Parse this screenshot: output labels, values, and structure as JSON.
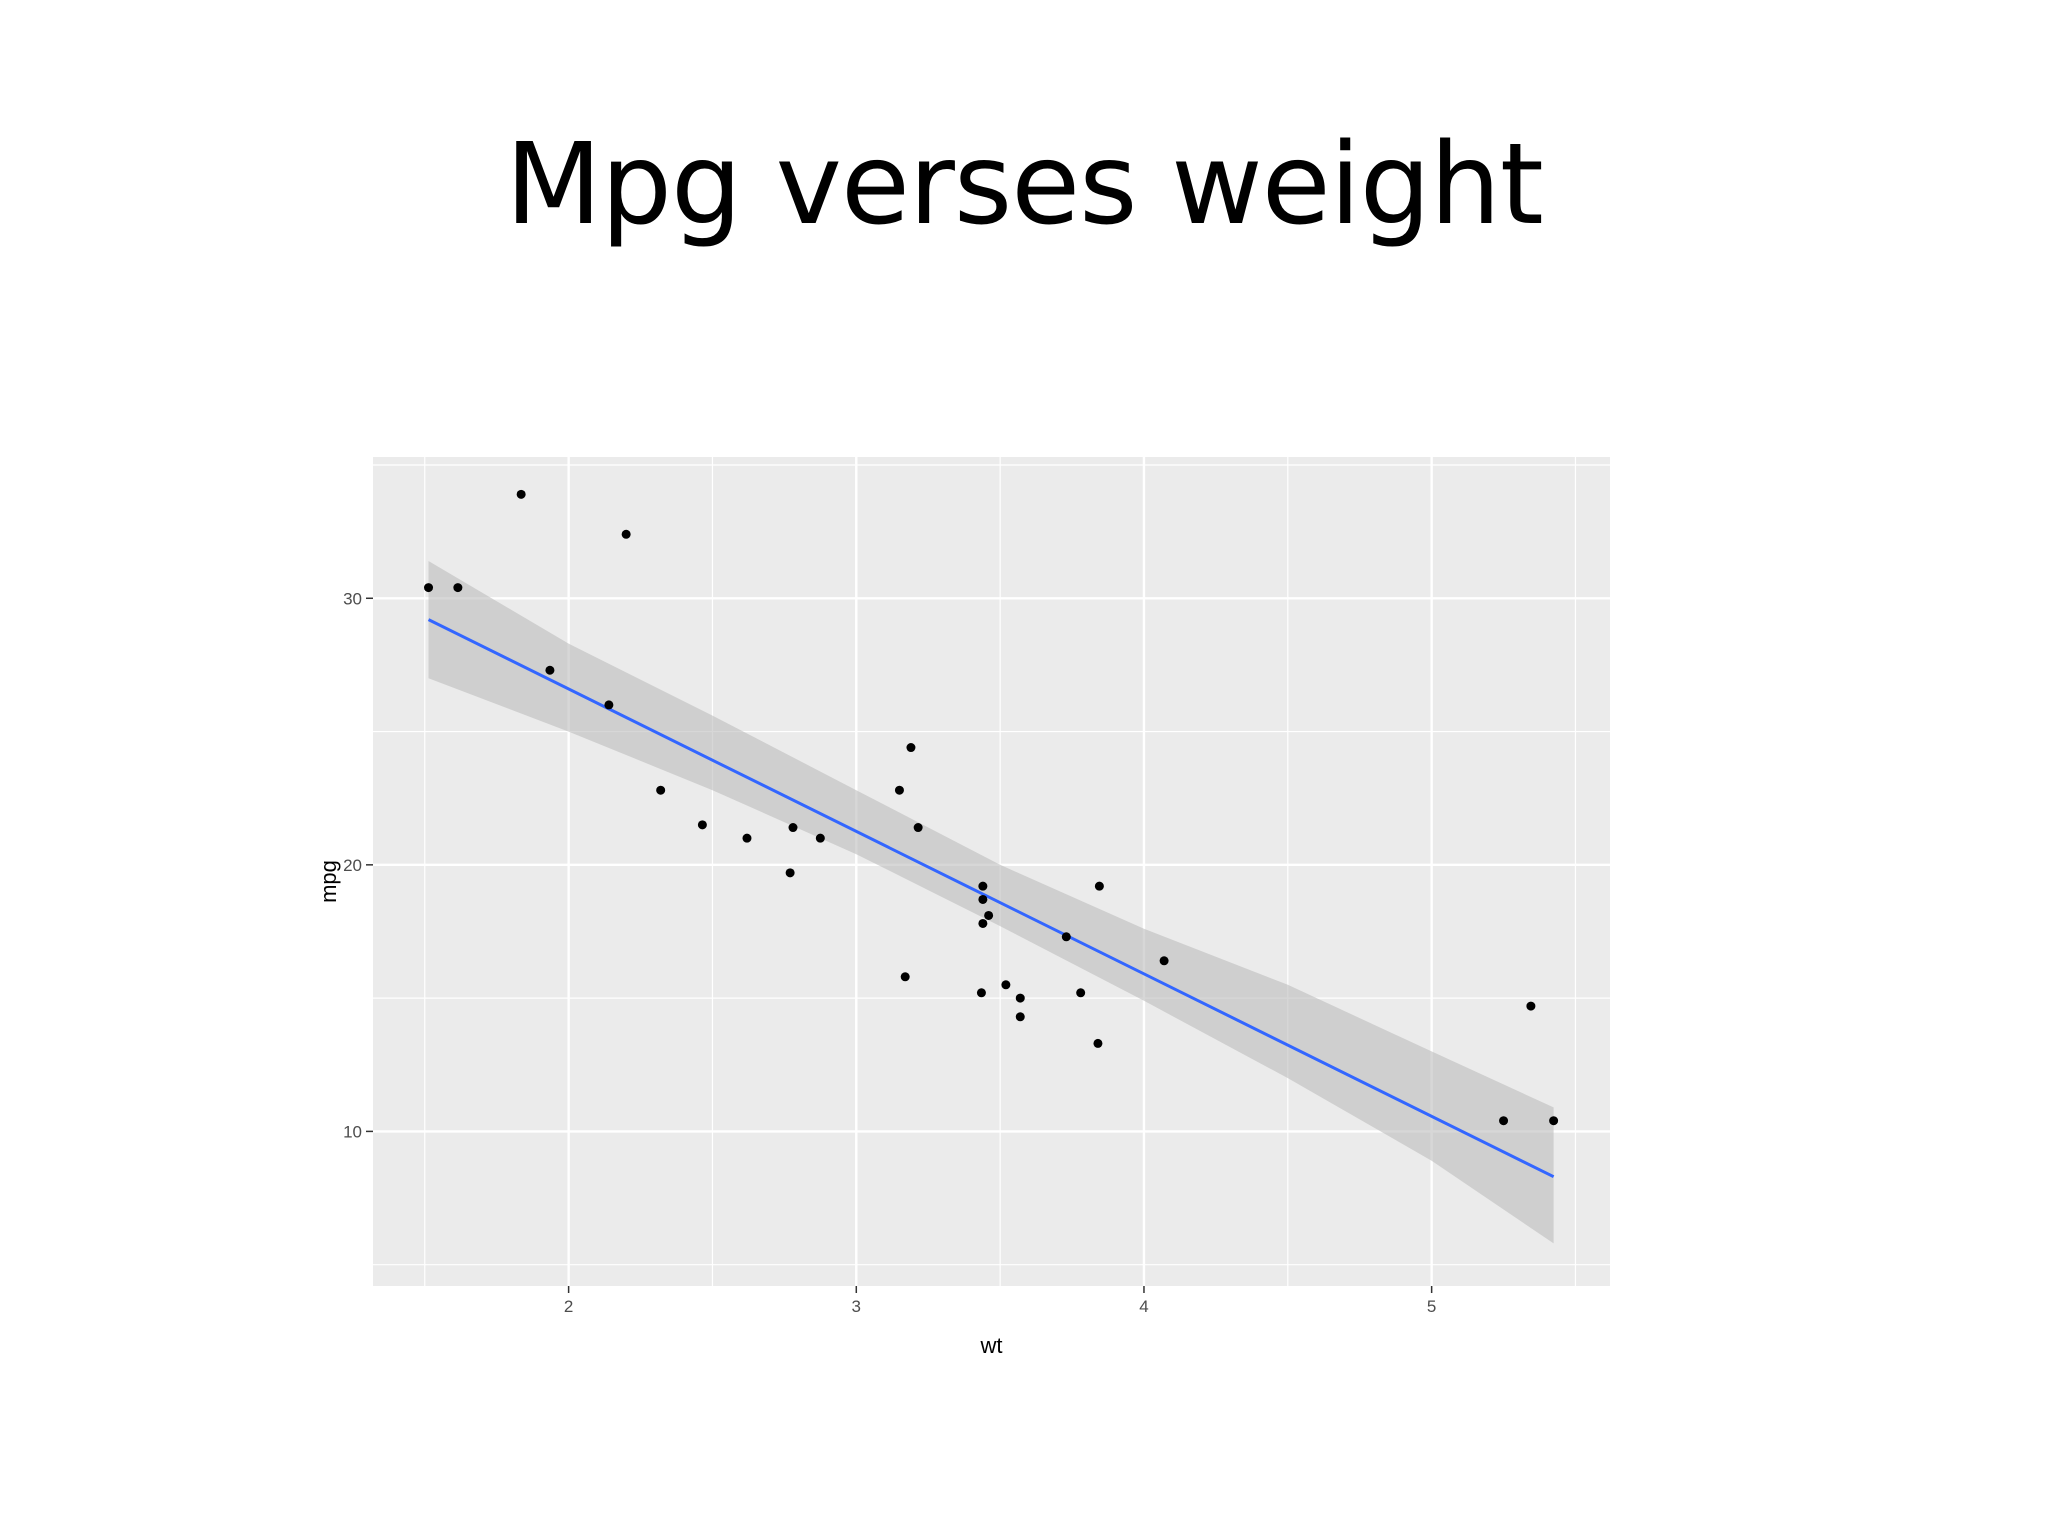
{
  "slide": {
    "title": "Mpg verses weight"
  },
  "colors": {
    "panel": "#ebebeb",
    "grid": "#ffffff",
    "points": "#000000",
    "fit_line": "#3366ff",
    "ribbon": "#bdbdbd"
  },
  "chart_data": {
    "type": "scatter",
    "title": "Mpg verses weight",
    "xlabel": "wt",
    "ylabel": "mpg",
    "xlim": [
      1.32,
      5.62
    ],
    "ylim": [
      4.2,
      35.3
    ],
    "x_ticks": [
      2,
      3,
      4,
      5
    ],
    "y_ticks": [
      10,
      20,
      30
    ],
    "x_tick_labels": [
      "2",
      "3",
      "4",
      "5"
    ],
    "y_tick_labels": [
      "10",
      "20",
      "30"
    ],
    "grid": true,
    "points": [
      {
        "x": 2.62,
        "y": 21.0
      },
      {
        "x": 2.875,
        "y": 21.0
      },
      {
        "x": 2.32,
        "y": 22.8
      },
      {
        "x": 3.215,
        "y": 21.4
      },
      {
        "x": 3.44,
        "y": 18.7
      },
      {
        "x": 3.46,
        "y": 18.1
      },
      {
        "x": 3.57,
        "y": 14.3
      },
      {
        "x": 3.19,
        "y": 24.4
      },
      {
        "x": 3.15,
        "y": 22.8
      },
      {
        "x": 3.44,
        "y": 19.2
      },
      {
        "x": 3.44,
        "y": 17.8
      },
      {
        "x": 4.07,
        "y": 16.4
      },
      {
        "x": 3.73,
        "y": 17.3
      },
      {
        "x": 3.78,
        "y": 15.2
      },
      {
        "x": 5.25,
        "y": 10.4
      },
      {
        "x": 5.424,
        "y": 10.4
      },
      {
        "x": 5.345,
        "y": 14.7
      },
      {
        "x": 2.2,
        "y": 32.4
      },
      {
        "x": 1.615,
        "y": 30.4
      },
      {
        "x": 1.835,
        "y": 33.9
      },
      {
        "x": 2.465,
        "y": 21.5
      },
      {
        "x": 3.52,
        "y": 15.5
      },
      {
        "x": 3.435,
        "y": 15.2
      },
      {
        "x": 3.84,
        "y": 13.3
      },
      {
        "x": 3.845,
        "y": 19.2
      },
      {
        "x": 1.935,
        "y": 27.3
      },
      {
        "x": 2.14,
        "y": 26.0
      },
      {
        "x": 1.513,
        "y": 30.4
      },
      {
        "x": 3.17,
        "y": 15.8
      },
      {
        "x": 2.77,
        "y": 19.7
      },
      {
        "x": 3.57,
        "y": 15.0
      },
      {
        "x": 2.78,
        "y": 21.4
      }
    ],
    "fit_line": {
      "method": "lm",
      "x": [
        1.513,
        5.424
      ],
      "y": [
        29.2,
        8.3
      ]
    },
    "confidence_band": {
      "x": [
        1.513,
        2.0,
        2.5,
        3.0,
        3.5,
        4.0,
        4.5,
        5.0,
        5.424
      ],
      "lower": [
        27.0,
        25.0,
        22.8,
        20.4,
        17.7,
        14.9,
        12.0,
        8.9,
        5.8
      ],
      "upper": [
        31.4,
        28.3,
        25.6,
        22.8,
        20.0,
        17.6,
        15.5,
        13.0,
        10.9
      ]
    }
  }
}
